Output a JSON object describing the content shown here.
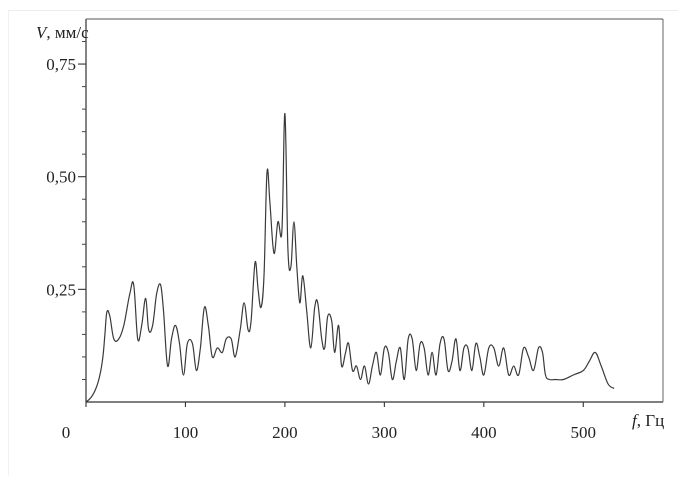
{
  "chart_data": {
    "type": "line",
    "title": "",
    "ylabel": {
      "symbol": "V",
      "unit": ", мм/с"
    },
    "xlabel": {
      "symbol": "f",
      "unit": ", Гц"
    },
    "xlim": [
      0,
      550
    ],
    "ylim": [
      0,
      0.85
    ],
    "x_ticks": [
      {
        "value": 0,
        "label": "0"
      },
      {
        "value": 100,
        "label": "100"
      },
      {
        "value": 200,
        "label": "200"
      },
      {
        "value": 300,
        "label": "300"
      },
      {
        "value": 400,
        "label": "400"
      },
      {
        "value": 500,
        "label": "500"
      }
    ],
    "y_ticks": [
      {
        "value": 0.25,
        "label": "0,25"
      },
      {
        "value": 0.5,
        "label": "0,50"
      },
      {
        "value": 0.75,
        "label": "0,75"
      }
    ],
    "y_minor_ticks": [
      0.05,
      0.1,
      0.15,
      0.2,
      0.3,
      0.35,
      0.4,
      0.45,
      0.55,
      0.6,
      0.65,
      0.7,
      0.8
    ],
    "grid": false,
    "line_color": "#3a3a3a",
    "series": [
      {
        "points": [
          [
            0,
            0.0
          ],
          [
            5,
            0.01
          ],
          [
            10,
            0.03
          ],
          [
            14,
            0.06
          ],
          [
            17,
            0.1
          ],
          [
            19,
            0.15
          ],
          [
            21,
            0.2
          ],
          [
            24,
            0.19
          ],
          [
            28,
            0.14
          ],
          [
            33,
            0.14
          ],
          [
            38,
            0.17
          ],
          [
            44,
            0.24
          ],
          [
            48,
            0.26
          ],
          [
            52,
            0.14
          ],
          [
            56,
            0.17
          ],
          [
            60,
            0.23
          ],
          [
            63,
            0.16
          ],
          [
            67,
            0.17
          ],
          [
            71,
            0.24
          ],
          [
            75,
            0.26
          ],
          [
            78,
            0.2
          ],
          [
            82,
            0.08
          ],
          [
            86,
            0.14
          ],
          [
            90,
            0.17
          ],
          [
            94,
            0.13
          ],
          [
            98,
            0.06
          ],
          [
            102,
            0.13
          ],
          [
            107,
            0.13
          ],
          [
            111,
            0.07
          ],
          [
            115,
            0.12
          ],
          [
            119,
            0.21
          ],
          [
            123,
            0.17
          ],
          [
            127,
            0.1
          ],
          [
            132,
            0.12
          ],
          [
            137,
            0.11
          ],
          [
            141,
            0.14
          ],
          [
            146,
            0.14
          ],
          [
            150,
            0.1
          ],
          [
            155,
            0.16
          ],
          [
            159,
            0.22
          ],
          [
            163,
            0.16
          ],
          [
            166,
            0.18
          ],
          [
            170,
            0.31
          ],
          [
            173,
            0.25
          ],
          [
            176,
            0.21
          ],
          [
            179,
            0.28
          ],
          [
            182,
            0.51
          ],
          [
            185,
            0.44
          ],
          [
            189,
            0.33
          ],
          [
            193,
            0.4
          ],
          [
            197,
            0.38
          ],
          [
            200,
            0.64
          ],
          [
            203,
            0.34
          ],
          [
            206,
            0.3
          ],
          [
            209,
            0.4
          ],
          [
            212,
            0.3
          ],
          [
            215,
            0.22
          ],
          [
            218,
            0.28
          ],
          [
            222,
            0.2
          ],
          [
            226,
            0.12
          ],
          [
            230,
            0.21
          ],
          [
            233,
            0.22
          ],
          [
            237,
            0.14
          ],
          [
            240,
            0.12
          ],
          [
            243,
            0.19
          ],
          [
            247,
            0.18
          ],
          [
            250,
            0.11
          ],
          [
            254,
            0.17
          ],
          [
            257,
            0.08
          ],
          [
            261,
            0.11
          ],
          [
            264,
            0.13
          ],
          [
            268,
            0.07
          ],
          [
            272,
            0.08
          ],
          [
            276,
            0.05
          ],
          [
            280,
            0.08
          ],
          [
            284,
            0.04
          ],
          [
            288,
            0.08
          ],
          [
            292,
            0.11
          ],
          [
            296,
            0.06
          ],
          [
            300,
            0.12
          ],
          [
            304,
            0.11
          ],
          [
            308,
            0.05
          ],
          [
            312,
            0.09
          ],
          [
            316,
            0.12
          ],
          [
            320,
            0.05
          ],
          [
            324,
            0.14
          ],
          [
            328,
            0.14
          ],
          [
            332,
            0.07
          ],
          [
            336,
            0.13
          ],
          [
            340,
            0.12
          ],
          [
            344,
            0.06
          ],
          [
            348,
            0.11
          ],
          [
            352,
            0.06
          ],
          [
            356,
            0.13
          ],
          [
            360,
            0.14
          ],
          [
            364,
            0.07
          ],
          [
            368,
            0.09
          ],
          [
            372,
            0.14
          ],
          [
            376,
            0.07
          ],
          [
            380,
            0.12
          ],
          [
            384,
            0.12
          ],
          [
            388,
            0.07
          ],
          [
            392,
            0.13
          ],
          [
            396,
            0.1
          ],
          [
            400,
            0.06
          ],
          [
            405,
            0.12
          ],
          [
            410,
            0.12
          ],
          [
            415,
            0.08
          ],
          [
            420,
            0.12
          ],
          [
            425,
            0.06
          ],
          [
            430,
            0.08
          ],
          [
            435,
            0.06
          ],
          [
            440,
            0.12
          ],
          [
            445,
            0.1
          ],
          [
            450,
            0.07
          ],
          [
            455,
            0.12
          ],
          [
            459,
            0.11
          ],
          [
            462,
            0.06
          ],
          [
            466,
            0.05
          ],
          [
            472,
            0.05
          ],
          [
            480,
            0.05
          ],
          [
            490,
            0.06
          ],
          [
            500,
            0.07
          ],
          [
            506,
            0.09
          ],
          [
            512,
            0.11
          ],
          [
            518,
            0.08
          ],
          [
            525,
            0.04
          ],
          [
            531,
            0.03
          ]
        ]
      }
    ]
  }
}
